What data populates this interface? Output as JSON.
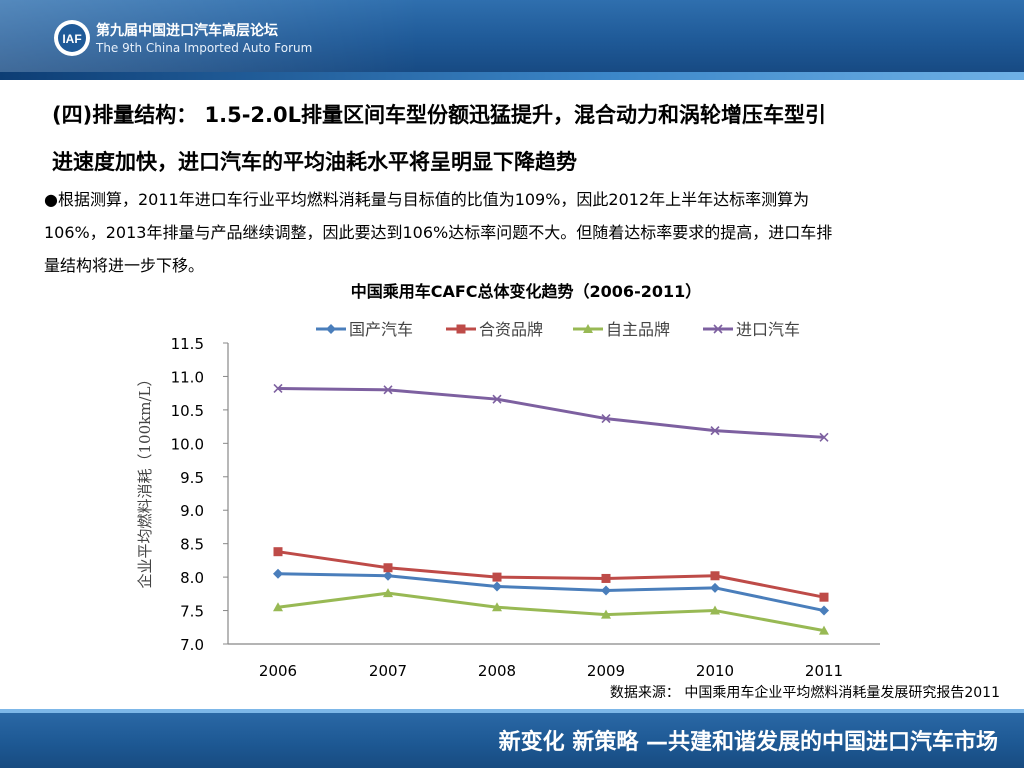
{
  "header": {
    "logo_text": "IAF",
    "forum_cn": "第九届中国进口汽车高层论坛",
    "forum_en": "The 9th China Imported Auto Forum"
  },
  "title": {
    "line1": "(四)排量结构： 1.5-2.0L排量区间车型份额迅猛提升，混合动力和涡轮增压车型引",
    "line2": "进速度加快，进口汽车的平均油耗水平将呈明显下降趋势"
  },
  "paragraph": {
    "bullet": "●",
    "line1": "根据测算，2011年进口车行业平均燃料消耗量与目标值的比值为109%，因此2012年上半年达标率测算为",
    "line2": "106%，2013年排量与产品继续调整，因此要达到106%达标率问题不大。但随着达标率要求的提高，进口车排",
    "line3": "量结构将进一步下移。"
  },
  "chart_data": {
    "type": "line",
    "title": "中国乘用车CAFC总体变化趋势（2006-2011）",
    "xlabel": "",
    "ylabel": "企业平均燃料消耗（100km/L）",
    "x": [
      2006,
      2007,
      2008,
      2009,
      2010,
      2011
    ],
    "ylim": [
      7.0,
      11.5
    ],
    "yticks": [
      "7.0",
      "7.5",
      "8.0",
      "8.5",
      "9.0",
      "9.5",
      "10.0",
      "10.5",
      "11.0",
      "11.5"
    ],
    "legend_position": "top",
    "grid": false,
    "series": [
      {
        "name": "国产汽车",
        "marker": "diamond",
        "color": "#4a7ebb",
        "values": [
          8.05,
          8.02,
          7.86,
          7.8,
          7.84,
          7.5
        ]
      },
      {
        "name": "合资品牌",
        "marker": "square",
        "color": "#be4b48",
        "values": [
          8.38,
          8.14,
          8.0,
          7.98,
          8.02,
          7.7
        ]
      },
      {
        "name": "自主品牌",
        "marker": "triangle",
        "color": "#98b954",
        "values": [
          7.55,
          7.76,
          7.55,
          7.44,
          7.5,
          7.2
        ]
      },
      {
        "name": "进口汽车",
        "marker": "x",
        "color": "#7d60a0",
        "values": [
          10.82,
          10.8,
          10.66,
          10.37,
          10.19,
          10.09
        ]
      }
    ]
  },
  "source_note": "数据来源： 中国乘用车企业平均燃料消耗量发展研究报告2011",
  "footer": {
    "slogan": "新变化  新策略 —共建和谐发展的中国进口汽车市场"
  }
}
